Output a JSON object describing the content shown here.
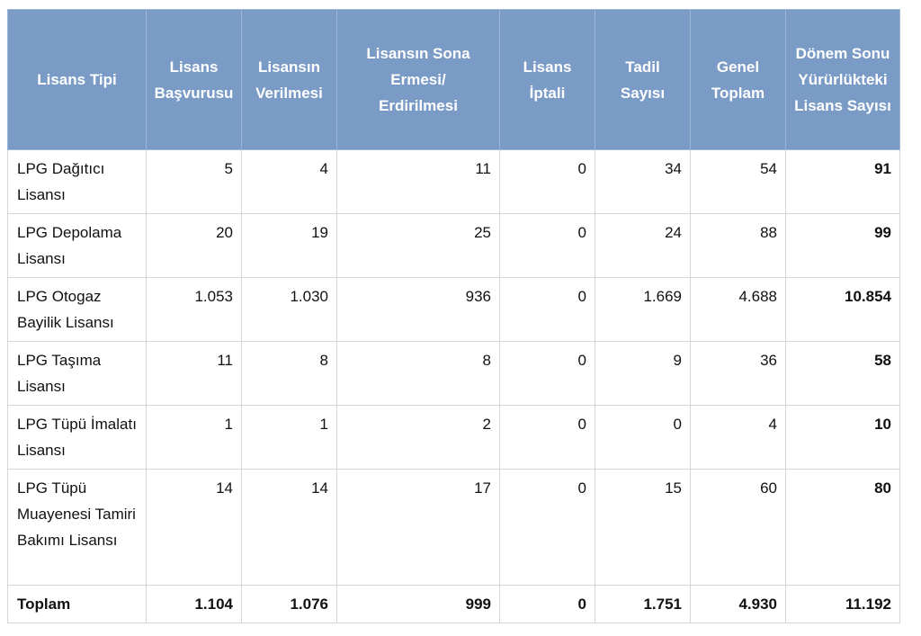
{
  "table": {
    "headers": [
      "Lisans Tipi",
      "Lisans Başvurusu",
      "Lisansın Verilmesi",
      "Lisansın Sona Ermesi/ Erdirilmesi",
      "Lisans İptali",
      "Tadil Sayısı",
      "Genel Toplam",
      "Dönem Sonu Yürürlükteki Lisans Sayısı"
    ],
    "rows": [
      [
        "LPG Dağıtıcı Lisansı",
        "5",
        "4",
        "11",
        "0",
        "34",
        "54",
        "91"
      ],
      [
        "LPG Depolama Lisansı",
        "20",
        "19",
        "25",
        "0",
        "24",
        "88",
        "99"
      ],
      [
        "LPG Otogaz Bayilik Lisansı",
        "1.053",
        "1.030",
        "936",
        "0",
        "1.669",
        "4.688",
        "10.854"
      ],
      [
        "LPG Taşıma Lisansı",
        "11",
        "8",
        "8",
        "0",
        "9",
        "36",
        "58"
      ],
      [
        "LPG Tüpü İmalatı Lisansı",
        "1",
        "1",
        "2",
        "0",
        "0",
        "4",
        "10"
      ],
      [
        "LPG Tüpü Muayenesi Tamiri Bakımı Lisansı",
        "14",
        "14",
        "17",
        "0",
        "15",
        "60",
        "80"
      ]
    ],
    "total": [
      "Toplam",
      "1.104",
      "1.076",
      "999",
      "0",
      "1.751",
      "4.930",
      "11.192"
    ]
  }
}
